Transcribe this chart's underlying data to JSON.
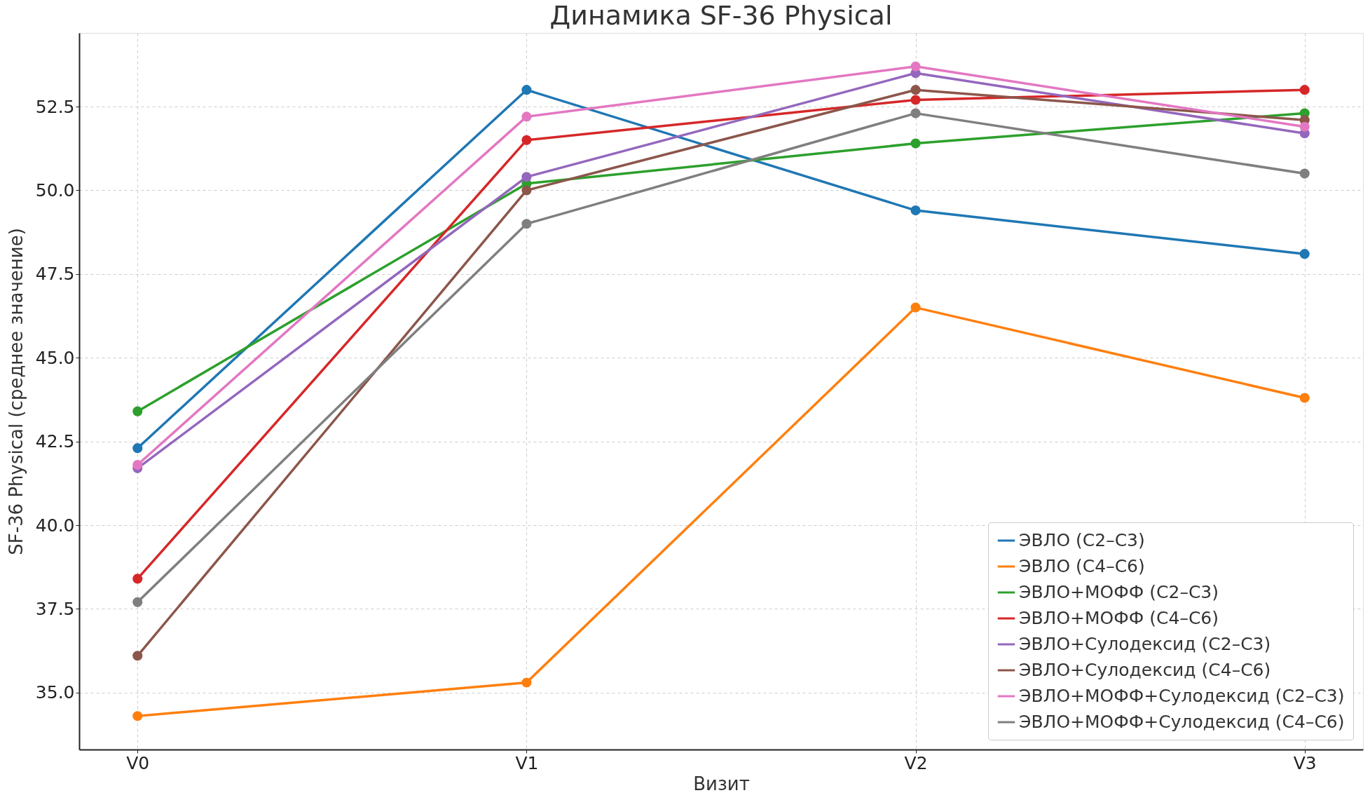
{
  "chart_data": {
    "type": "line",
    "title": "Динамика SF-36 Physical",
    "xlabel": "Визит",
    "ylabel": "SF-36 Physical (среднее значение)",
    "categories": [
      "V0",
      "V1",
      "V2",
      "V3"
    ],
    "series": [
      {
        "name": "ЭВЛО (C2–C3)",
        "color": "#1f77b4",
        "values": [
          42.3,
          53.0,
          49.4,
          48.1
        ]
      },
      {
        "name": "ЭВЛО (C4–C6)",
        "color": "#ff7f0e",
        "values": [
          34.3,
          35.3,
          46.5,
          43.8
        ]
      },
      {
        "name": "ЭВЛО+МОФФ (C2–C3)",
        "color": "#2ca02c",
        "values": [
          43.4,
          50.2,
          51.4,
          52.3
        ]
      },
      {
        "name": "ЭВЛО+МОФФ (C4–C6)",
        "color": "#d62728",
        "values": [
          38.4,
          51.5,
          52.7,
          53.0
        ]
      },
      {
        "name": "ЭВЛО+Сулодексид (C2–C3)",
        "color": "#9467bd",
        "values": [
          41.7,
          50.4,
          53.5,
          51.7
        ]
      },
      {
        "name": "ЭВЛО+Сулодексид (C4–C6)",
        "color": "#8c564b",
        "values": [
          36.1,
          50.0,
          53.0,
          52.1
        ]
      },
      {
        "name": "ЭВЛО+МОФФ+Сулодексид (C2–C3)",
        "color": "#e377c2",
        "values": [
          41.8,
          52.2,
          53.7,
          51.9
        ]
      },
      {
        "name": "ЭВЛО+МОФФ+Сулодексид (C4–C6)",
        "color": "#7f7f7f",
        "values": [
          37.7,
          49.0,
          52.3,
          50.5
        ]
      }
    ],
    "ylim": [
      33.3,
      54.7
    ],
    "yticks": [
      {
        "value": 35,
        "label": "35.0"
      },
      {
        "value": 37.5,
        "label": "37.5"
      },
      {
        "value": 40,
        "label": "40.0"
      },
      {
        "value": 42.5,
        "label": "42.5"
      },
      {
        "value": 45,
        "label": "45.0"
      },
      {
        "value": 47.5,
        "label": "47.5"
      },
      {
        "value": 50,
        "label": "50.0"
      },
      {
        "value": 52.5,
        "label": "52.5"
      }
    ],
    "grid": true,
    "legend": "bottom right",
    "marker": "circle",
    "line_style": "solid"
  }
}
